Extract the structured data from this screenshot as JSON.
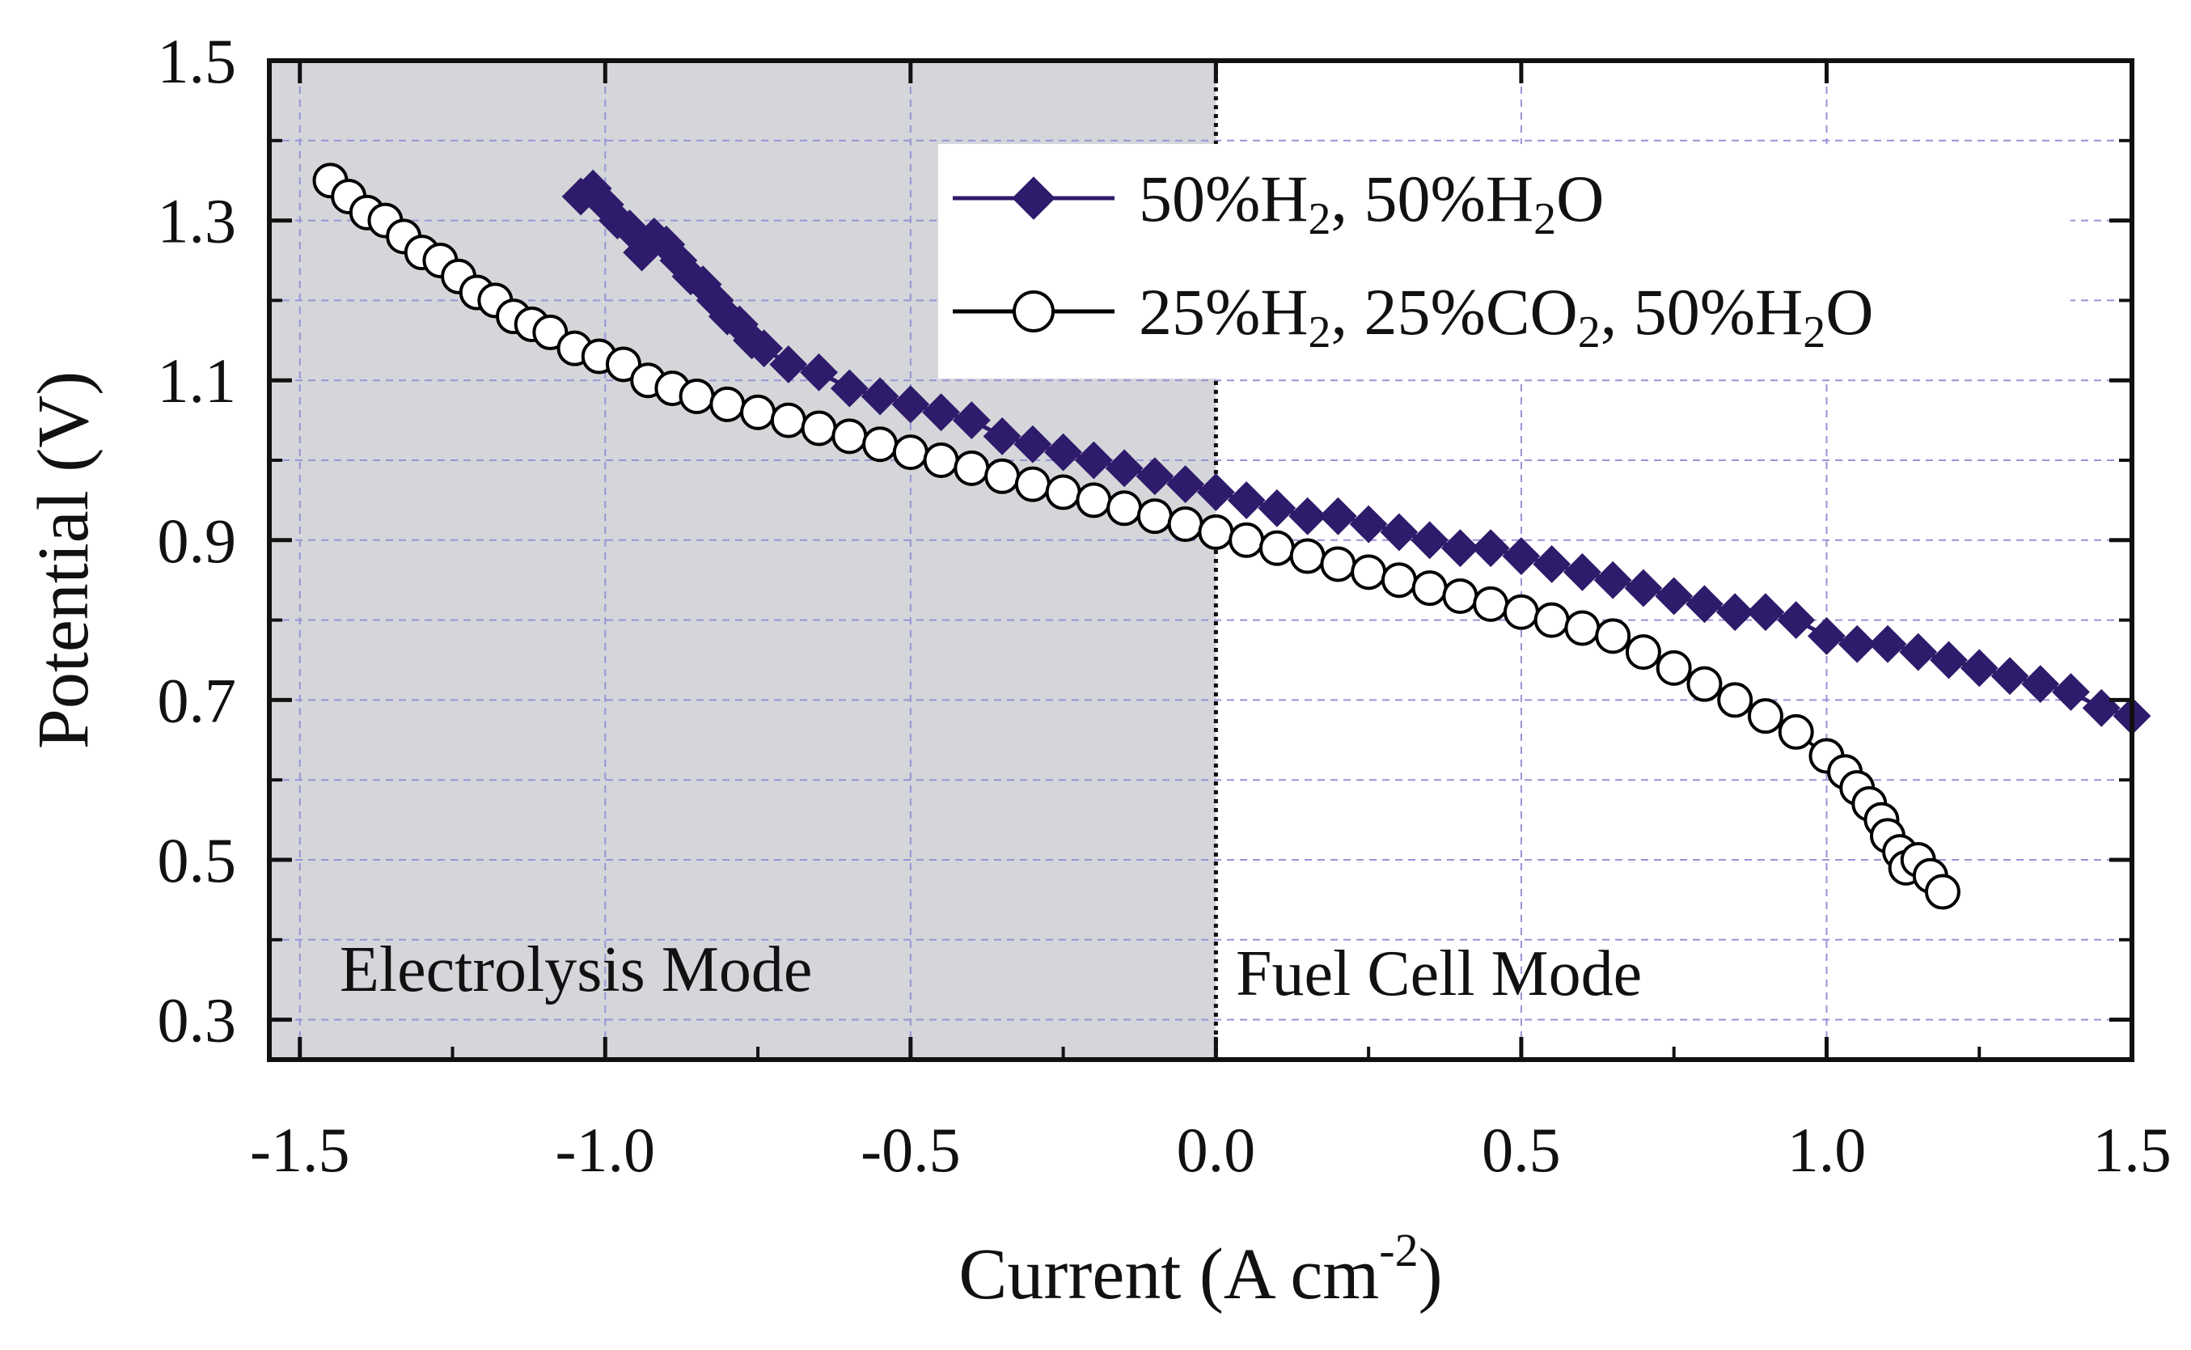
{
  "chart_data": {
    "type": "line",
    "title": "",
    "xlabel": "Current (A cm",
    "xlabel_sup": "-2",
    "xlabel_end": ")",
    "ylabel": "Potential (V)",
    "xlim": [
      -1.55,
      1.5
    ],
    "ylim": [
      0.25,
      1.5
    ],
    "x_ticks": [
      -1.5,
      -1.0,
      -0.5,
      0.0,
      0.5,
      1.0,
      1.5
    ],
    "x_tick_labels": [
      "-1.5",
      "-1.0",
      "-0.5",
      "0.0",
      "0.5",
      "1.0",
      "1.5"
    ],
    "y_ticks": [
      0.3,
      0.5,
      0.7,
      0.9,
      1.1,
      1.3,
      1.5
    ],
    "y_tick_labels": [
      "0.3",
      "0.5",
      "0.7",
      "0.9",
      "1.1",
      "1.3",
      "1.5"
    ],
    "grid": true,
    "shaded_region": {
      "x_from": -1.55,
      "x_to": 0.0,
      "color": "#d4d6da"
    },
    "divider_x": 0.0,
    "region_labels": [
      "Electrolysis Mode",
      "Fuel Cell Mode"
    ],
    "legend_position": "top-right",
    "series": [
      {
        "name": "50%H2, 50%H2O",
        "label_parts": [
          "50%H",
          "2",
          ", 50%H",
          "2",
          "O"
        ],
        "marker": "filled-diamond",
        "color": "#2e1b6b",
        "points": [
          [
            -1.04,
            1.33
          ],
          [
            -1.02,
            1.34
          ],
          [
            -1.0,
            1.32
          ],
          [
            -0.98,
            1.3
          ],
          [
            -0.96,
            1.29
          ],
          [
            -0.94,
            1.26
          ],
          [
            -0.92,
            1.28
          ],
          [
            -0.9,
            1.27
          ],
          [
            -0.88,
            1.25
          ],
          [
            -0.86,
            1.23
          ],
          [
            -0.84,
            1.22
          ],
          [
            -0.82,
            1.2
          ],
          [
            -0.8,
            1.18
          ],
          [
            -0.78,
            1.17
          ],
          [
            -0.76,
            1.15
          ],
          [
            -0.74,
            1.14
          ],
          [
            -0.7,
            1.12
          ],
          [
            -0.65,
            1.11
          ],
          [
            -0.6,
            1.09
          ],
          [
            -0.55,
            1.08
          ],
          [
            -0.5,
            1.07
          ],
          [
            -0.45,
            1.06
          ],
          [
            -0.4,
            1.05
          ],
          [
            -0.35,
            1.03
          ],
          [
            -0.3,
            1.02
          ],
          [
            -0.25,
            1.01
          ],
          [
            -0.2,
            1.0
          ],
          [
            -0.15,
            0.99
          ],
          [
            -0.1,
            0.98
          ],
          [
            -0.05,
            0.97
          ],
          [
            0.0,
            0.96
          ],
          [
            0.05,
            0.95
          ],
          [
            0.1,
            0.94
          ],
          [
            0.15,
            0.93
          ],
          [
            0.2,
            0.93
          ],
          [
            0.25,
            0.92
          ],
          [
            0.3,
            0.91
          ],
          [
            0.35,
            0.9
          ],
          [
            0.4,
            0.89
          ],
          [
            0.45,
            0.89
          ],
          [
            0.5,
            0.88
          ],
          [
            0.55,
            0.87
          ],
          [
            0.6,
            0.86
          ],
          [
            0.65,
            0.85
          ],
          [
            0.7,
            0.84
          ],
          [
            0.75,
            0.83
          ],
          [
            0.8,
            0.82
          ],
          [
            0.85,
            0.81
          ],
          [
            0.9,
            0.81
          ],
          [
            0.95,
            0.8
          ],
          [
            1.0,
            0.78
          ],
          [
            1.05,
            0.77
          ],
          [
            1.1,
            0.77
          ],
          [
            1.15,
            0.76
          ],
          [
            1.2,
            0.75
          ],
          [
            1.25,
            0.74
          ],
          [
            1.3,
            0.73
          ],
          [
            1.35,
            0.72
          ],
          [
            1.4,
            0.71
          ],
          [
            1.45,
            0.69
          ],
          [
            1.5,
            0.68
          ]
        ]
      },
      {
        "name": "25%H2, 25%CO2, 50%H2O",
        "label_parts": [
          "25%H",
          "2",
          ", 25%CO",
          "2",
          ", 50%H",
          "2",
          "O"
        ],
        "marker": "open-circle",
        "color": "#000000",
        "points": [
          [
            -1.45,
            1.35
          ],
          [
            -1.42,
            1.33
          ],
          [
            -1.39,
            1.31
          ],
          [
            -1.36,
            1.3
          ],
          [
            -1.33,
            1.28
          ],
          [
            -1.3,
            1.26
          ],
          [
            -1.27,
            1.25
          ],
          [
            -1.24,
            1.23
          ],
          [
            -1.21,
            1.21
          ],
          [
            -1.18,
            1.2
          ],
          [
            -1.15,
            1.18
          ],
          [
            -1.12,
            1.17
          ],
          [
            -1.09,
            1.16
          ],
          [
            -1.05,
            1.14
          ],
          [
            -1.01,
            1.13
          ],
          [
            -0.97,
            1.12
          ],
          [
            -0.93,
            1.1
          ],
          [
            -0.89,
            1.09
          ],
          [
            -0.85,
            1.08
          ],
          [
            -0.8,
            1.07
          ],
          [
            -0.75,
            1.06
          ],
          [
            -0.7,
            1.05
          ],
          [
            -0.65,
            1.04
          ],
          [
            -0.6,
            1.03
          ],
          [
            -0.55,
            1.02
          ],
          [
            -0.5,
            1.01
          ],
          [
            -0.45,
            1.0
          ],
          [
            -0.4,
            0.99
          ],
          [
            -0.35,
            0.98
          ],
          [
            -0.3,
            0.97
          ],
          [
            -0.25,
            0.96
          ],
          [
            -0.2,
            0.95
          ],
          [
            -0.15,
            0.94
          ],
          [
            -0.1,
            0.93
          ],
          [
            -0.05,
            0.92
          ],
          [
            0.0,
            0.91
          ],
          [
            0.05,
            0.9
          ],
          [
            0.1,
            0.89
          ],
          [
            0.15,
            0.88
          ],
          [
            0.2,
            0.87
          ],
          [
            0.25,
            0.86
          ],
          [
            0.3,
            0.85
          ],
          [
            0.35,
            0.84
          ],
          [
            0.4,
            0.83
          ],
          [
            0.45,
            0.82
          ],
          [
            0.5,
            0.81
          ],
          [
            0.55,
            0.8
          ],
          [
            0.6,
            0.79
          ],
          [
            0.65,
            0.78
          ],
          [
            0.7,
            0.76
          ],
          [
            0.75,
            0.74
          ],
          [
            0.8,
            0.72
          ],
          [
            0.85,
            0.7
          ],
          [
            0.9,
            0.68
          ],
          [
            0.95,
            0.66
          ],
          [
            1.0,
            0.63
          ],
          [
            1.03,
            0.61
          ],
          [
            1.05,
            0.59
          ],
          [
            1.07,
            0.57
          ],
          [
            1.09,
            0.55
          ],
          [
            1.1,
            0.53
          ],
          [
            1.12,
            0.51
          ],
          [
            1.13,
            0.49
          ],
          [
            1.15,
            0.5
          ],
          [
            1.17,
            0.48
          ],
          [
            1.19,
            0.46
          ]
        ]
      }
    ]
  }
}
